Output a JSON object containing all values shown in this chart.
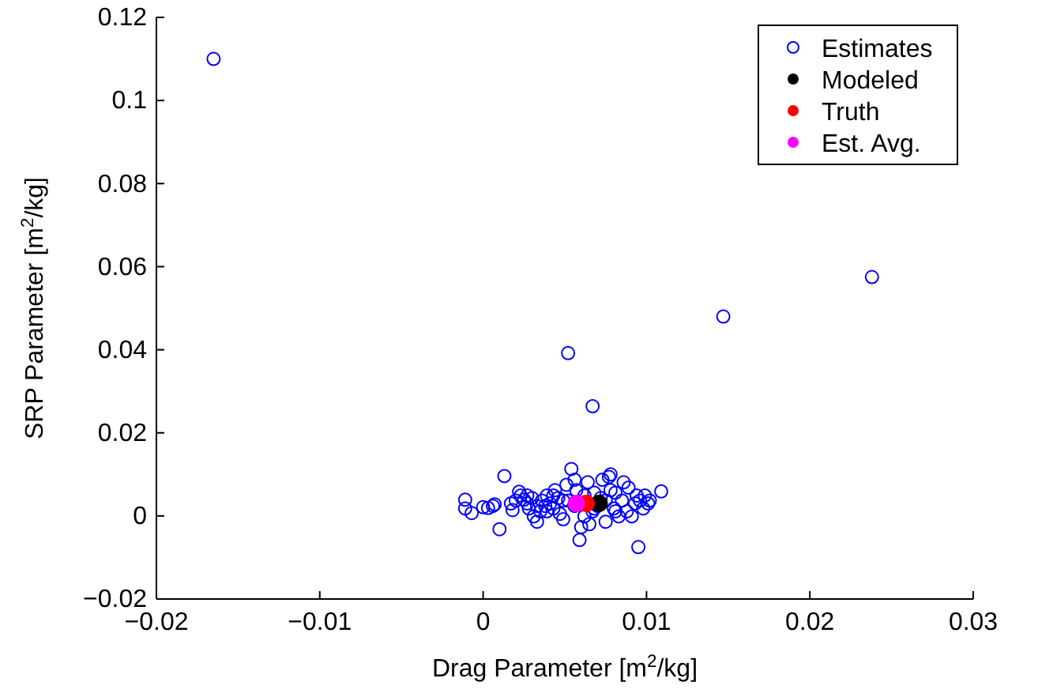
{
  "chart_data": {
    "type": "scatter",
    "xlabel": "Drag Parameter [m$^{2}$/kg]",
    "ylabel": "SRP Parameter [m$^{2}$/kg]",
    "xlim": [
      -0.02,
      0.03
    ],
    "ylim": [
      -0.02,
      0.12
    ],
    "xticks": [
      {
        "value": -0.02,
        "label": "−0.02"
      },
      {
        "value": -0.01,
        "label": "−0.01"
      },
      0,
      0.01,
      0.02,
      0.03
    ],
    "yticks": [
      {
        "value": -0.02,
        "label": "−0.02"
      },
      0,
      0.02,
      0.04,
      0.06,
      0.08,
      0.1,
      0.12
    ],
    "grid": false,
    "legend": "top right",
    "marker": "circle",
    "series": [
      {
        "name": "Estimates",
        "color": "#0000ff",
        "x": [
          -0.0165,
          0.0238,
          0.0147,
          0.0052,
          0.0067,
          -0.0011,
          -0.0011,
          -0.0007,
          0,
          0.0006,
          0.0007,
          0.0003,
          0.0013,
          0.001,
          0.0017,
          0.0018,
          0.0022,
          0.0023,
          0.0025,
          0.0027,
          0.0028,
          0.003,
          0.0031,
          0.0033,
          0.0035,
          0.0036,
          0.0038,
          0.0039,
          0.0041,
          0.0043,
          0.0044,
          0.0046,
          0.0047,
          0.0049,
          0.0051,
          0.0052,
          0.0054,
          0.0056,
          0.0057,
          0.0059,
          0.006,
          0.0062,
          0.0064,
          0.0065,
          0.0067,
          0.0068,
          0.007,
          0.0072,
          0.0073,
          0.0075,
          0.0077,
          0.0078,
          0.008,
          0.0081,
          0.0083,
          0.0085,
          0.0086,
          0.0088,
          0.0089,
          0.0091,
          0.0093,
          0.0094,
          0.0095,
          0.0096,
          0.0098,
          0.0099,
          0.0101,
          0.0102,
          0.0109,
          0.0043,
          0.0049,
          0.0056,
          0.0062,
          0.0068,
          0.0075,
          0.0078,
          0.0081,
          0.0027,
          0.002,
          0.0033,
          0.0039
        ],
        "values": [
          0.11,
          0.0575,
          0.048,
          0.0392,
          0.0264,
          0.0039,
          0.0018,
          0.0007,
          0.0021,
          0.0024,
          0.0028,
          0.0019,
          0.0096,
          -0.0032,
          0.003,
          0.0014,
          0.0058,
          0.0049,
          0.0039,
          0.003,
          0.0018,
          0.0043,
          -0.0001,
          -0.0014,
          0.0011,
          0.0037,
          0.0024,
          0.0049,
          0.003,
          0.0018,
          0.0062,
          0.0043,
          0.0005,
          -0.0008,
          0.0075,
          0.0037,
          0.0113,
          0.0087,
          0.0062,
          -0.0058,
          -0.0027,
          -0.0001,
          0.0081,
          -0.002,
          0.0011,
          0.0056,
          0.0024,
          0.0043,
          0.0087,
          -0.0014,
          0.0094,
          0.01,
          0.0018,
          0.0056,
          -0.0001,
          0.0037,
          0.0081,
          0.0011,
          0.0068,
          -0.0001,
          0.003,
          0.0049,
          -0.0075,
          0.0037,
          0.0018,
          0.0049,
          0.003,
          0.0037,
          0.0059,
          0.0049,
          0.0037,
          0.0024,
          0.0049,
          0.0018,
          0.0037,
          0.0062,
          0.0011,
          0.0049,
          0.0037,
          0.0024,
          0.0011
        ]
      },
      {
        "name": "Modeled",
        "color": "#000000",
        "x": [
          0.0071
        ],
        "values": [
          0.003
        ]
      },
      {
        "name": "Truth",
        "color": "#ff0000",
        "x": [
          0.0063
        ],
        "values": [
          0.003
        ]
      },
      {
        "name": "Est. Avg.",
        "color": "#ff00ff",
        "x": [
          0.0057
        ],
        "values": [
          0.003
        ]
      }
    ]
  }
}
